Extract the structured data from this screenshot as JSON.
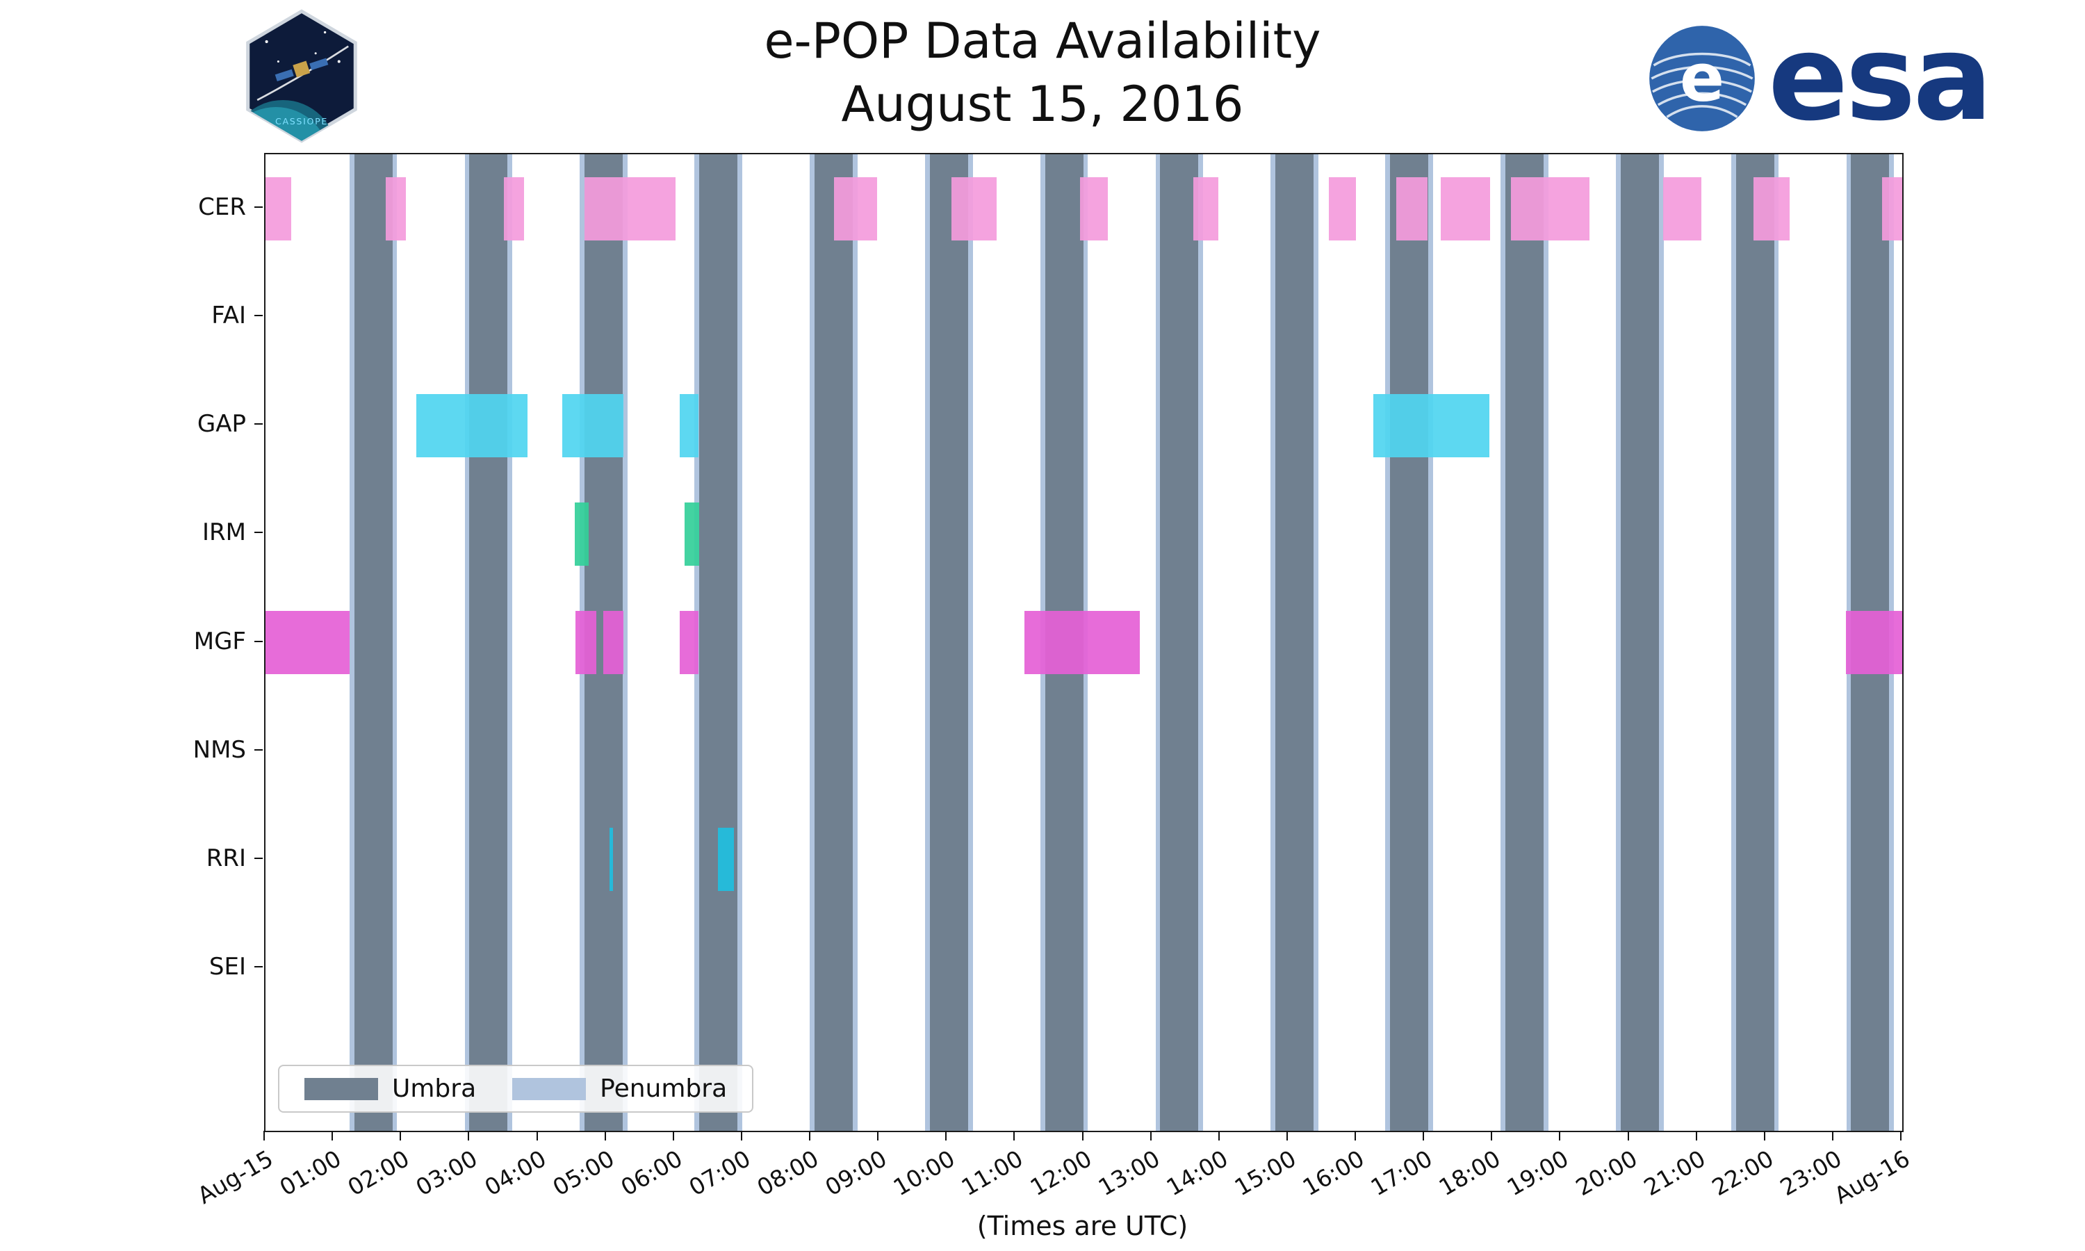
{
  "header": {
    "cassiope_text": "CASSIOPE",
    "esa_wordmark": "esa"
  },
  "legend": {
    "umbra_label": "Umbra",
    "penumbra_label": "Penumbra"
  },
  "footer": {
    "caption": "(Times are UTC)"
  },
  "chart_data": {
    "type": "timeline",
    "title": "e-POP Data Availability",
    "subtitle": "August 15, 2016",
    "x_axis": {
      "unit": "hours UTC",
      "min": 0,
      "max": 24,
      "tick_labels": [
        "Aug-15",
        "01:00",
        "02:00",
        "03:00",
        "04:00",
        "05:00",
        "06:00",
        "07:00",
        "08:00",
        "09:00",
        "10:00",
        "11:00",
        "12:00",
        "13:00",
        "14:00",
        "15:00",
        "16:00",
        "17:00",
        "18:00",
        "19:00",
        "20:00",
        "21:00",
        "22:00",
        "23:00",
        "Aug-16"
      ]
    },
    "rows": [
      "CER",
      "FAI",
      "GAP",
      "IRM",
      "MGF",
      "NMS",
      "RRI",
      "SEI"
    ],
    "colors": {
      "umbra": "#708090",
      "penumbra": "#b0c4de",
      "axis": "#111111"
    },
    "penumbra_margin_hours": 0.07,
    "umbra_intervals_hours": [
      [
        1.3,
        1.86
      ],
      [
        2.99,
        3.55
      ],
      [
        4.68,
        5.24
      ],
      [
        6.36,
        6.92
      ],
      [
        8.05,
        8.61
      ],
      [
        9.74,
        10.3
      ],
      [
        11.43,
        11.99
      ],
      [
        13.12,
        13.68
      ],
      [
        14.81,
        15.37
      ],
      [
        16.49,
        17.05
      ],
      [
        18.18,
        18.74
      ],
      [
        19.87,
        20.43
      ],
      [
        21.56,
        22.12
      ],
      [
        23.25,
        23.81
      ]
    ],
    "series": [
      {
        "name": "CER",
        "color": "#f49bdc",
        "intervals_hours": [
          [
            0.0,
            0.38
          ],
          [
            1.76,
            2.06
          ],
          [
            3.5,
            3.79
          ],
          [
            4.68,
            6.01
          ],
          [
            8.34,
            8.97
          ],
          [
            10.06,
            10.72
          ],
          [
            11.94,
            12.35
          ],
          [
            13.6,
            13.97
          ],
          [
            15.59,
            15.99
          ],
          [
            16.58,
            17.04
          ],
          [
            17.23,
            17.96
          ],
          [
            18.26,
            19.41
          ],
          [
            20.49,
            21.05
          ],
          [
            21.82,
            22.35
          ],
          [
            23.7,
            24.0
          ]
        ]
      },
      {
        "name": "GAP",
        "color": "#4fd5f0",
        "intervals_hours": [
          [
            2.21,
            3.84
          ],
          [
            4.35,
            5.25
          ],
          [
            6.07,
            6.35
          ],
          [
            16.24,
            17.95
          ]
        ]
      },
      {
        "name": "IRM",
        "color": "#33cf99",
        "intervals_hours": [
          [
            4.53,
            4.74
          ],
          [
            6.15,
            6.36
          ]
        ]
      },
      {
        "name": "MGF",
        "color": "#e560d6",
        "intervals_hours": [
          [
            0.0,
            1.23
          ],
          [
            4.55,
            4.85
          ],
          [
            4.95,
            5.25
          ],
          [
            6.07,
            6.35
          ],
          [
            11.13,
            12.82
          ],
          [
            23.17,
            24.0
          ]
        ]
      },
      {
        "name": "RRI",
        "color": "#1fbfe0",
        "intervals_hours": [
          [
            5.04,
            5.1
          ],
          [
            6.63,
            6.87
          ]
        ]
      }
    ]
  }
}
